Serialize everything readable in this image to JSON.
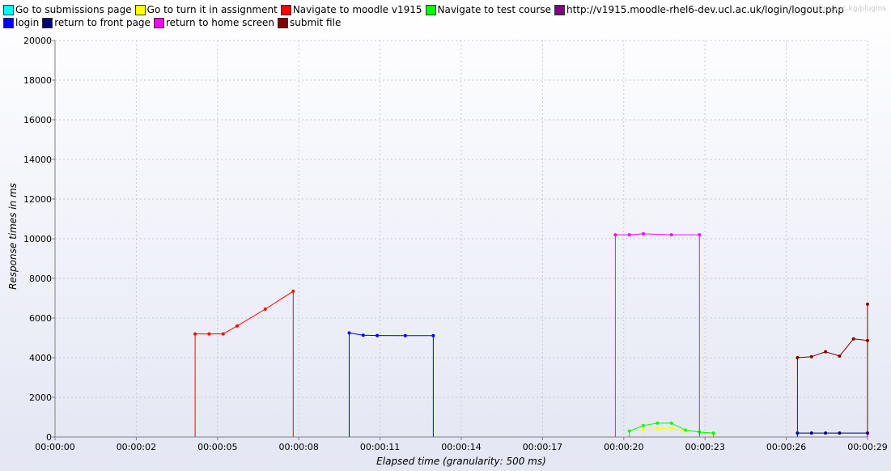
{
  "watermark": "http://apc.kg/plugins",
  "chart_data": {
    "type": "line",
    "xlabel": "Elapsed time (granularity: 500 ms)",
    "ylabel": "Response times in ms",
    "xlim": [
      "00:00:00",
      "00:00:29"
    ],
    "ylim": [
      0,
      20000
    ],
    "x_tick_labels": [
      "00:00:00",
      "00:00:02",
      "00:00:05",
      "00:00:08",
      "00:00:11",
      "00:00:14",
      "00:00:17",
      "00:00:20",
      "00:00:23",
      "00:00:26",
      "00:00:29"
    ],
    "y_tick_labels": [
      "0",
      "2000",
      "4000",
      "6000",
      "8000",
      "10000",
      "12000",
      "14000",
      "16000",
      "18000",
      "20000"
    ],
    "grid": true,
    "legend_position": "top",
    "series": [
      {
        "name": "Go to submissions page",
        "color": "#00ffff",
        "points": []
      },
      {
        "name": "Go to turn it in assignment",
        "color": "#ffff00",
        "points": [
          [
            "00:00:21.0",
            0
          ],
          [
            "00:00:21.0",
            380
          ],
          [
            "00:00:21.5",
            420
          ],
          [
            "00:00:22.0",
            450
          ],
          [
            "00:00:22.5",
            300
          ],
          [
            "00:00:23.0",
            250
          ],
          [
            "00:00:23.5",
            150
          ],
          [
            "00:00:23.5",
            0
          ]
        ]
      },
      {
        "name": "Navigate to moodle v1915",
        "color": "#ff0000",
        "points": [
          [
            "00:00:05.0",
            0
          ],
          [
            "00:00:05.0",
            5200
          ],
          [
            "00:00:05.5",
            5200
          ],
          [
            "00:00:06.0",
            5200
          ],
          [
            "00:00:06.5",
            5600
          ],
          [
            "00:00:07.5",
            6450
          ],
          [
            "00:00:08.5",
            7350
          ],
          [
            "00:00:08.5",
            0
          ]
        ]
      },
      {
        "name": "Navigate to test course",
        "color": "#00ff00",
        "points": [
          [
            "00:00:20.5",
            0
          ],
          [
            "00:00:20.5",
            300
          ],
          [
            "00:00:21.0",
            580
          ],
          [
            "00:00:21.5",
            700
          ],
          [
            "00:00:22.0",
            700
          ],
          [
            "00:00:22.5",
            350
          ],
          [
            "00:00:23.0",
            250
          ],
          [
            "00:00:23.5",
            200
          ],
          [
            "00:00:23.5",
            0
          ]
        ]
      },
      {
        "name": "http://v1915.moodle-rhel6-dev.ucl.ac.uk/login/logout.php",
        "color": "#800080",
        "points": []
      },
      {
        "name": "login",
        "color": "#0000ff",
        "points": [
          [
            "00:00:10.5",
            0
          ],
          [
            "00:00:10.5",
            5250
          ],
          [
            "00:00:11.0",
            5130
          ],
          [
            "00:00:11.5",
            5120
          ],
          [
            "00:00:12.5",
            5110
          ],
          [
            "00:00:13.5",
            5110
          ],
          [
            "00:00:13.5",
            0
          ]
        ]
      },
      {
        "name": "return to front page",
        "color": "#000080",
        "points": [
          [
            "00:00:26.5",
            0
          ],
          [
            "00:00:26.5",
            200
          ],
          [
            "00:00:27.0",
            200
          ],
          [
            "00:00:27.5",
            200
          ],
          [
            "00:00:28.0",
            200
          ],
          [
            "00:00:29.0",
            200
          ],
          [
            "00:00:29.0",
            0
          ]
        ]
      },
      {
        "name": "return to home screen",
        "color": "#ff00ff",
        "points": [
          [
            "00:00:20.0",
            0
          ],
          [
            "00:00:20.0",
            10200
          ],
          [
            "00:00:20.5",
            10200
          ],
          [
            "00:00:21.0",
            10250
          ],
          [
            "00:00:22.0",
            10200
          ],
          [
            "00:00:23.0",
            10200
          ],
          [
            "00:00:23.0",
            0
          ]
        ]
      },
      {
        "name": "submit file",
        "color": "#800000",
        "points": [
          [
            "00:00:26.5",
            0
          ],
          [
            "00:00:26.5",
            4000
          ],
          [
            "00:00:27.0",
            4050
          ],
          [
            "00:00:27.5",
            4300
          ],
          [
            "00:00:28.0",
            4080
          ],
          [
            "00:00:28.5",
            4950
          ],
          [
            "00:00:29.5",
            4870
          ],
          [
            "00:00:30.0",
            6700
          ],
          [
            "00:00:30.0",
            0
          ]
        ]
      }
    ]
  }
}
